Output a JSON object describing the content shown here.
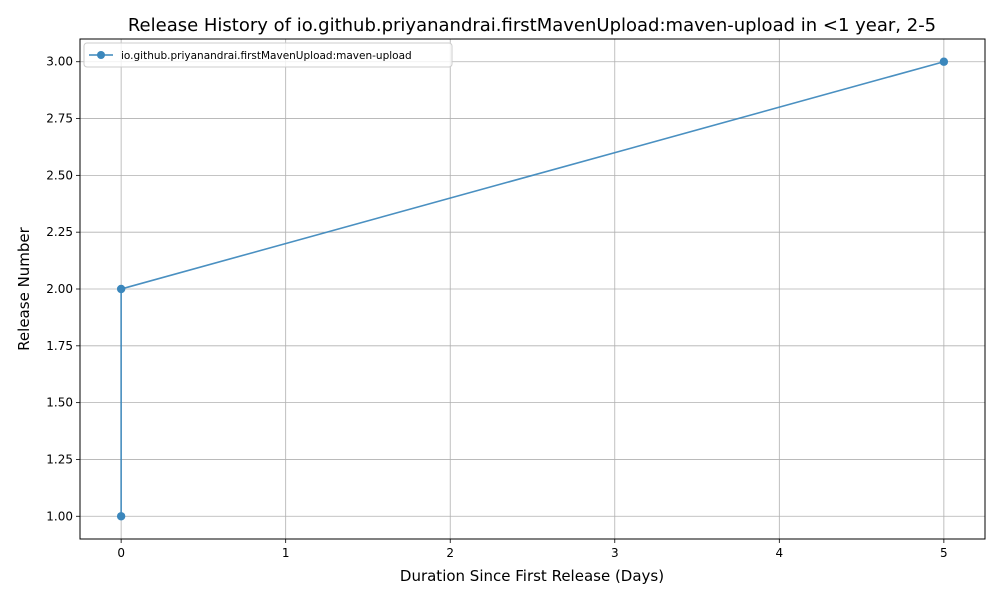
{
  "chart_data": {
    "type": "line",
    "title": "Release History of io.github.priyanandrai.firstMavenUpload:maven-upload in <1 year, 2-5",
    "xlabel": "Duration Since First Release (Days)",
    "ylabel": "Release Number",
    "xlim": [
      -0.25,
      5.25
    ],
    "ylim": [
      0.9,
      3.1
    ],
    "xticks": [
      0,
      1,
      2,
      3,
      4,
      5
    ],
    "xtick_labels": [
      "0",
      "1",
      "2",
      "3",
      "4",
      "5"
    ],
    "yticks": [
      1.0,
      1.25,
      1.5,
      1.75,
      2.0,
      2.25,
      2.5,
      2.75,
      3.0
    ],
    "ytick_labels": [
      "1.00",
      "1.25",
      "1.50",
      "1.75",
      "2.00",
      "2.25",
      "2.50",
      "2.75",
      "3.00"
    ],
    "grid": true,
    "legend_position": "top-left",
    "series": [
      {
        "name": "io.github.priyanandrai.firstMavenUpload:maven-upload",
        "color": "#3b87bc",
        "marker": "circle",
        "x": [
          0,
          0,
          5
        ],
        "y": [
          1,
          2,
          3
        ]
      }
    ]
  }
}
